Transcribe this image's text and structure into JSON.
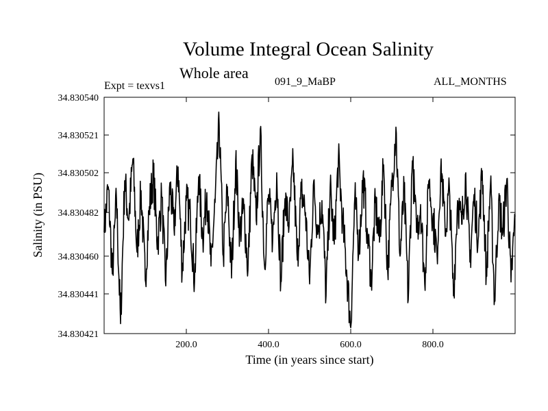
{
  "header": {
    "title": "Volume Integral Ocean Salinity",
    "subtitle": "Whole area",
    "expt": "Expt = texvs1",
    "run": "091_9_MaBP",
    "months": "ALL_MONTHS"
  },
  "chart_data": {
    "type": "line",
    "title": "Volume Integral Ocean Salinity",
    "subtitle": "Whole area",
    "xlabel": "Time (in years since start)",
    "ylabel": "Salinity (in PSU)",
    "xlim": [
      0,
      1000
    ],
    "ylim": [
      34.830421,
      34.83054
    ],
    "x_ticks": [
      200,
      400,
      600,
      800
    ],
    "x_tick_labels": [
      "200.0",
      "400.0",
      "600.0",
      "800.0"
    ],
    "y_ticks": [
      34.83054,
      34.830521,
      34.830502,
      34.830482,
      34.83046,
      34.830441,
      34.830421
    ],
    "y_tick_labels": [
      "34.830540",
      "34.830521",
      "34.830502",
      "34.830482",
      "34.830460",
      "34.830441",
      "34.830421"
    ],
    "grid": false,
    "series": [
      {
        "name": "Salinity",
        "color": "#000000",
        "x": [
          0,
          10,
          20,
          30,
          40,
          50,
          60,
          70,
          80,
          90,
          100,
          110,
          120,
          130,
          140,
          150,
          160,
          170,
          180,
          190,
          200,
          210,
          220,
          230,
          240,
          250,
          260,
          270,
          280,
          290,
          300,
          310,
          320,
          330,
          340,
          350,
          360,
          370,
          380,
          390,
          400,
          410,
          420,
          430,
          440,
          450,
          460,
          470,
          480,
          490,
          500,
          510,
          520,
          530,
          540,
          550,
          560,
          570,
          580,
          590,
          600,
          610,
          620,
          630,
          640,
          650,
          660,
          670,
          680,
          690,
          700,
          710,
          720,
          730,
          740,
          750,
          760,
          770,
          780,
          790,
          800,
          810,
          820,
          830,
          840,
          850,
          860,
          870,
          880,
          890,
          900,
          910,
          920,
          930,
          940,
          950,
          960,
          970,
          980,
          990,
          1000
        ],
        "values": [
          34.830472,
          34.830495,
          34.830451,
          34.830489,
          34.830426,
          34.830498,
          34.830478,
          34.830509,
          34.830462,
          34.830493,
          34.830448,
          34.830485,
          34.830501,
          34.830466,
          34.83049,
          34.830445,
          34.830497,
          34.830474,
          34.830505,
          34.830452,
          34.830488,
          34.830479,
          34.830447,
          34.8305,
          34.830469,
          34.830492,
          34.830455,
          34.830487,
          34.830526,
          34.83046,
          34.830495,
          34.830449,
          34.830508,
          34.830472,
          34.830484,
          34.830453,
          34.830511,
          34.830478,
          34.830524,
          34.830456,
          34.830491,
          34.830467,
          34.830502,
          34.830447,
          34.830489,
          34.830475,
          34.830507,
          34.830458,
          34.830493,
          34.830482,
          34.830446,
          34.830498,
          34.830471,
          34.830488,
          34.83044,
          34.830495,
          34.830466,
          34.830509,
          34.830479,
          34.830453,
          34.830424,
          34.83049,
          34.830462,
          34.8305,
          34.830474,
          34.830448,
          34.830487,
          34.830467,
          34.830506,
          34.830452,
          34.830495,
          34.830525,
          34.83046,
          34.830493,
          34.830438,
          34.830508,
          34.830472,
          34.830486,
          34.830446,
          34.830498,
          34.83048,
          34.830461,
          34.830509,
          34.83047,
          34.830495,
          34.83044,
          34.830488,
          34.830476,
          34.830502,
          34.830457,
          34.830491,
          34.830468,
          34.830503,
          34.830451,
          34.830496,
          34.830438,
          34.830488,
          34.830472,
          34.830499,
          34.830447,
          34.83048
        ]
      }
    ]
  }
}
